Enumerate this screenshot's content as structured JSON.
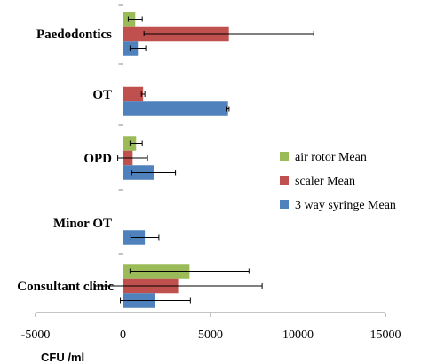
{
  "chart_data": {
    "type": "bar",
    "orientation": "horizontal",
    "categories": [
      "Paedodontics",
      "OT",
      "OPD",
      "Minor OT",
      "Consultant clinic"
    ],
    "series": [
      {
        "name": "air rotor Mean",
        "color": "#9BBB59",
        "values": [
          700,
          null,
          750,
          null,
          3800
        ],
        "errors": [
          400,
          null,
          350,
          null,
          3400
        ]
      },
      {
        "name": "scaler Mean",
        "color": "#C0504D",
        "values": [
          6050,
          1150,
          550,
          null,
          3150
        ],
        "errors": [
          4850,
          100,
          850,
          null,
          4800
        ]
      },
      {
        "name": "3 way syringe Mean",
        "color": "#4F81BD",
        "values": [
          850,
          6000,
          1750,
          1250,
          1850
        ],
        "errors": [
          450,
          60,
          1250,
          800,
          2000
        ]
      }
    ],
    "xlim": [
      -5000,
      15000
    ],
    "xticks": [
      "-5000",
      "0",
      "5000",
      "10000",
      "15000"
    ],
    "xlabel": "CFU /ml",
    "ylabel": "",
    "title": "",
    "legend": "right",
    "grid": false
  }
}
